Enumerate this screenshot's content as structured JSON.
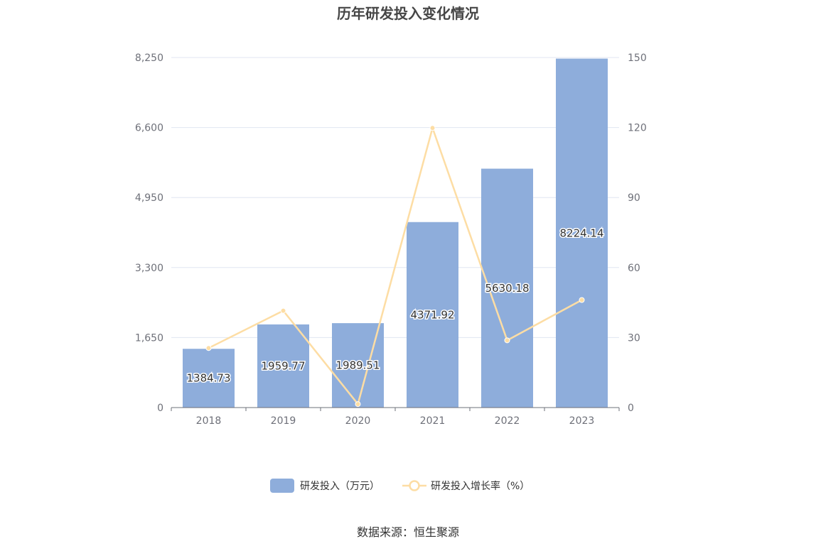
{
  "chart_data": {
    "type": "bar",
    "title": "历年研发投入变化情况",
    "categories": [
      "2018",
      "2019",
      "2020",
      "2021",
      "2022",
      "2023"
    ],
    "series": [
      {
        "name": "研发投入（万元）",
        "type": "bar",
        "axis": "left",
        "values": [
          1384.73,
          1959.77,
          1989.51,
          4371.92,
          5630.18,
          8224.14
        ],
        "labels": [
          "1384.73",
          "1959.77",
          "1989.51",
          "4371.92",
          "5630.18",
          "8224.14"
        ],
        "color": "#8eaddb"
      },
      {
        "name": "研发投入增长率（%）",
        "type": "line",
        "axis": "right",
        "values": [
          25.5,
          41.5,
          1.5,
          119.8,
          28.8,
          46.1
        ],
        "color": "#fddda4"
      }
    ],
    "left_axis": {
      "min": 0,
      "max": 8250,
      "ticks": [
        "0",
        "1,650",
        "3,300",
        "4,950",
        "6,600",
        "8,250"
      ]
    },
    "right_axis": {
      "min": 0,
      "max": 150,
      "ticks": [
        "0",
        "30",
        "60",
        "90",
        "120",
        "150"
      ]
    },
    "grid": true,
    "legend_position": "bottom",
    "source": "数据来源：恒生聚源"
  }
}
